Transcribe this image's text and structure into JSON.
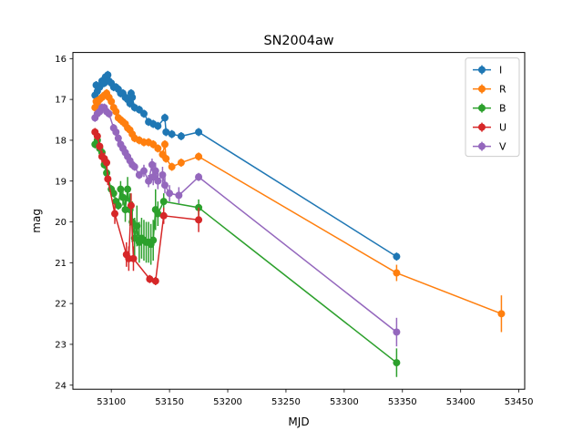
{
  "chart_data": {
    "type": "line",
    "title": "SN2004aw",
    "xlabel": "MJD",
    "ylabel": "mag",
    "xlim": [
      53067,
      53455
    ],
    "ylim": [
      24.1,
      15.85
    ],
    "y_inverted": true,
    "xticks": [
      53100,
      53150,
      53200,
      53250,
      53300,
      53350,
      53400,
      53450
    ],
    "yticks": [
      16,
      17,
      18,
      19,
      20,
      21,
      22,
      23,
      24
    ],
    "grid": false,
    "legend_position": "top-right",
    "series": [
      {
        "name": "I",
        "color": "#1f77b4",
        "points": [
          [
            53086,
            16.9,
            0.1
          ],
          [
            53087,
            16.65,
            0.1
          ],
          [
            53088,
            16.8,
            0.1
          ],
          [
            53090,
            16.7,
            0.1
          ],
          [
            53092,
            16.55,
            0.1
          ],
          [
            53093,
            16.6,
            0.1
          ],
          [
            53094,
            16.6,
            0.1
          ],
          [
            53095,
            16.45,
            0.1
          ],
          [
            53096,
            16.5,
            0.1
          ],
          [
            53097,
            16.4,
            0.1
          ],
          [
            53098,
            16.55,
            0.1
          ],
          [
            53100,
            16.6,
            0.1
          ],
          [
            53102,
            16.7,
            0.1
          ],
          [
            53104,
            16.7,
            0.1
          ],
          [
            53106,
            16.75,
            0.1
          ],
          [
            53108,
            16.85,
            0.1
          ],
          [
            53110,
            16.85,
            0.1
          ],
          [
            53112,
            16.95,
            0.1
          ],
          [
            53114,
            17.0,
            0.1
          ],
          [
            53116,
            17.1,
            0.1
          ],
          [
            53117,
            16.85,
            0.1
          ],
          [
            53118,
            16.95,
            0.1
          ],
          [
            53120,
            17.2,
            0.1
          ],
          [
            53124,
            17.25,
            0.1
          ],
          [
            53128,
            17.35,
            0.1
          ],
          [
            53132,
            17.55,
            0.1
          ],
          [
            53136,
            17.6,
            0.1
          ],
          [
            53140,
            17.65,
            0.1
          ],
          [
            53146,
            17.45,
            0.1
          ],
          [
            53147,
            17.8,
            0.1
          ],
          [
            53152,
            17.85,
            0.1
          ],
          [
            53160,
            17.9,
            0.1
          ],
          [
            53175,
            17.8,
            0.1
          ],
          [
            53345,
            20.85,
            0.1
          ]
        ]
      },
      {
        "name": "R",
        "color": "#ff7f0e",
        "points": [
          [
            53086,
            17.2,
            0.1
          ],
          [
            53087,
            17.05,
            0.1
          ],
          [
            53088,
            17.1,
            0.1
          ],
          [
            53090,
            17.0,
            0.1
          ],
          [
            53092,
            16.95,
            0.1
          ],
          [
            53094,
            16.9,
            0.1
          ],
          [
            53096,
            16.85,
            0.1
          ],
          [
            53098,
            16.95,
            0.1
          ],
          [
            53100,
            17.05,
            0.1
          ],
          [
            53102,
            17.2,
            0.1
          ],
          [
            53104,
            17.3,
            0.1
          ],
          [
            53106,
            17.45,
            0.1
          ],
          [
            53108,
            17.5,
            0.1
          ],
          [
            53110,
            17.55,
            0.1
          ],
          [
            53112,
            17.6,
            0.1
          ],
          [
            53114,
            17.7,
            0.1
          ],
          [
            53116,
            17.75,
            0.1
          ],
          [
            53118,
            17.85,
            0.1
          ],
          [
            53120,
            17.95,
            0.1
          ],
          [
            53124,
            18.0,
            0.1
          ],
          [
            53128,
            18.05,
            0.1
          ],
          [
            53132,
            18.05,
            0.1
          ],
          [
            53136,
            18.1,
            0.1
          ],
          [
            53140,
            18.2,
            0.1
          ],
          [
            53144,
            18.35,
            0.1
          ],
          [
            53146,
            18.1,
            0.1
          ],
          [
            53147,
            18.45,
            0.1
          ],
          [
            53152,
            18.65,
            0.1
          ],
          [
            53160,
            18.55,
            0.1
          ],
          [
            53175,
            18.4,
            0.1
          ],
          [
            53345,
            21.25,
            0.2
          ],
          [
            53435,
            22.25,
            0.45
          ]
        ]
      },
      {
        "name": "B",
        "color": "#2ca02c",
        "points": [
          [
            53086,
            18.1,
            0.1
          ],
          [
            53088,
            18.0,
            0.1
          ],
          [
            53090,
            18.2,
            0.1
          ],
          [
            53092,
            18.3,
            0.1
          ],
          [
            53094,
            18.6,
            0.1
          ],
          [
            53096,
            18.8,
            0.1
          ],
          [
            53100,
            19.2,
            0.1
          ],
          [
            53102,
            19.3,
            0.1
          ],
          [
            53104,
            19.5,
            0.1
          ],
          [
            53106,
            19.6,
            0.1
          ],
          [
            53108,
            19.2,
            0.2
          ],
          [
            53110,
            19.4,
            0.2
          ],
          [
            53112,
            19.7,
            0.3
          ],
          [
            53114,
            19.2,
            0.3
          ],
          [
            53116,
            19.7,
            0.4
          ],
          [
            53118,
            20.0,
            0.5
          ],
          [
            53120,
            20.4,
            0.5
          ],
          [
            53122,
            20.1,
            0.5
          ],
          [
            53124,
            20.5,
            0.5
          ],
          [
            53126,
            20.4,
            0.5
          ],
          [
            53128,
            20.45,
            0.5
          ],
          [
            53130,
            20.5,
            0.5
          ],
          [
            53132,
            20.5,
            0.5
          ],
          [
            53134,
            20.55,
            0.5
          ],
          [
            53136,
            20.45,
            0.5
          ],
          [
            53138,
            19.7,
            0.5
          ],
          [
            53140,
            19.8,
            0.3
          ],
          [
            53145,
            19.5,
            0.2
          ],
          [
            53175,
            19.65,
            0.2
          ],
          [
            53345,
            23.45,
            0.35
          ]
        ]
      },
      {
        "name": "U",
        "color": "#d62728",
        "points": [
          [
            53086,
            17.8,
            0.1
          ],
          [
            53088,
            17.9,
            0.1
          ],
          [
            53090,
            18.15,
            0.1
          ],
          [
            53092,
            18.4,
            0.15
          ],
          [
            53094,
            18.45,
            0.15
          ],
          [
            53096,
            18.55,
            0.15
          ],
          [
            53097,
            18.95,
            0.15
          ],
          [
            53103,
            19.8,
            0.25
          ],
          [
            53113,
            20.8,
            0.3
          ],
          [
            53115,
            20.9,
            0.3
          ],
          [
            53117,
            19.6,
            0.3
          ],
          [
            53119,
            20.9,
            0.3
          ],
          [
            53133,
            21.4,
            0.1
          ],
          [
            53138,
            21.45,
            0.1
          ],
          [
            53145,
            19.85,
            0.2
          ],
          [
            53175,
            19.95,
            0.3
          ]
        ]
      },
      {
        "name": "V",
        "color": "#9467bd",
        "points": [
          [
            53086,
            17.45,
            0.1
          ],
          [
            53088,
            17.35,
            0.1
          ],
          [
            53090,
            17.3,
            0.1
          ],
          [
            53092,
            17.2,
            0.1
          ],
          [
            53094,
            17.2,
            0.1
          ],
          [
            53096,
            17.3,
            0.1
          ],
          [
            53098,
            17.35,
            0.1
          ],
          [
            53102,
            17.7,
            0.1
          ],
          [
            53104,
            17.8,
            0.1
          ],
          [
            53106,
            17.95,
            0.1
          ],
          [
            53108,
            18.1,
            0.1
          ],
          [
            53110,
            18.2,
            0.1
          ],
          [
            53112,
            18.3,
            0.1
          ],
          [
            53114,
            18.4,
            0.1
          ],
          [
            53116,
            18.5,
            0.1
          ],
          [
            53118,
            18.6,
            0.1
          ],
          [
            53120,
            18.65,
            0.1
          ],
          [
            53124,
            18.85,
            0.1
          ],
          [
            53128,
            18.75,
            0.15
          ],
          [
            53132,
            19.0,
            0.15
          ],
          [
            53135,
            18.6,
            0.15
          ],
          [
            53136,
            18.9,
            0.2
          ],
          [
            53138,
            18.75,
            0.2
          ],
          [
            53140,
            19.0,
            0.2
          ],
          [
            53144,
            18.85,
            0.2
          ],
          [
            53146,
            19.1,
            0.2
          ],
          [
            53150,
            19.3,
            0.2
          ],
          [
            53158,
            19.35,
            0.2
          ],
          [
            53175,
            18.9,
            0.1
          ],
          [
            53345,
            22.7,
            0.35
          ]
        ]
      }
    ]
  }
}
